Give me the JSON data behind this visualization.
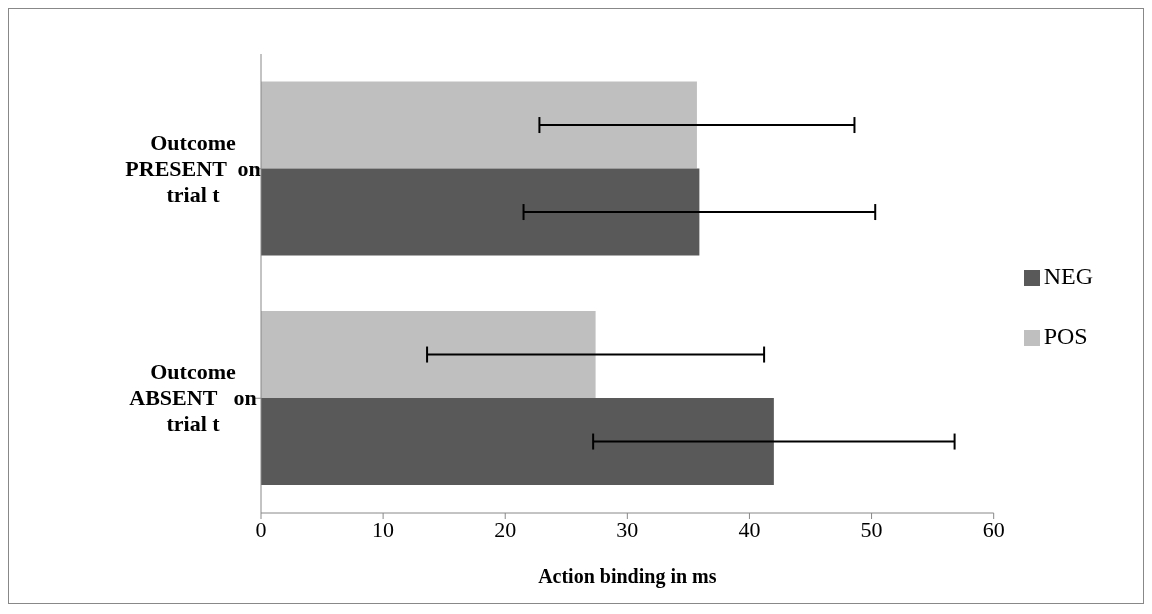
{
  "chart_data": {
    "type": "bar",
    "orientation": "horizontal",
    "xlabel": "Action binding in ms",
    "categories": [
      "Outcome PRESENT  on trial t",
      "Outcome ABSENT   on trial t"
    ],
    "series": [
      {
        "name": "POS",
        "color": "#bfbfbf",
        "values": [
          35.7,
          27.4
        ],
        "errors": [
          12.9,
          13.8
        ]
      },
      {
        "name": "NEG",
        "color": "#595959",
        "values": [
          35.9,
          42.0
        ],
        "errors": [
          14.4,
          14.8
        ]
      }
    ],
    "xlim": [
      0,
      60
    ],
    "xticks": [
      0,
      10,
      20,
      30,
      40,
      50,
      60
    ],
    "grid": false,
    "legend": "right"
  }
}
